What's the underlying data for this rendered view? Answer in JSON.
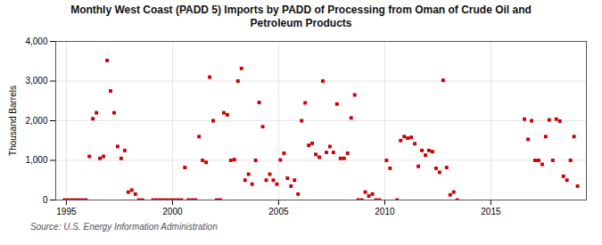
{
  "chart_data": {
    "type": "scatter",
    "title": "Monthly West Coast (PADD 5) Imports by PADD of Processing from Oman of Crude Oil and\nPetroleum Products",
    "ylabel": "Thousand Barrels",
    "source": "Source: U.S. Energy Information Administration",
    "color": "#cc0000",
    "marker": "square",
    "grid": true,
    "xlim": [
      1994.5,
      2019.5
    ],
    "xticks": [
      1995,
      2000,
      2005,
      2010,
      2015
    ],
    "ylim": [
      0,
      4000
    ],
    "yticks": [
      0,
      {
        "value": 1000,
        "label": "1,000"
      },
      {
        "value": 2000,
        "label": "2,000"
      },
      {
        "value": 3000,
        "label": "3,000"
      },
      {
        "value": 4000,
        "label": "4,000"
      }
    ],
    "x": [
      1994.917,
      1995.083,
      1995.25,
      1995.417,
      1995.583,
      1995.75,
      1995.917,
      1996.083,
      1996.25,
      1996.417,
      1996.583,
      1996.75,
      1996.917,
      1997.083,
      1997.25,
      1997.417,
      1997.583,
      1997.75,
      1997.917,
      1998.083,
      1998.25,
      1998.417,
      1998.583,
      1999.083,
      1999.25,
      1999.417,
      1999.583,
      1999.75,
      1999.917,
      2000.083,
      2000.25,
      2000.417,
      2000.583,
      2000.75,
      2000.917,
      2001.083,
      2001.25,
      2001.417,
      2001.583,
      2001.75,
      2001.917,
      2002.083,
      2002.25,
      2002.417,
      2002.583,
      2002.75,
      2002.917,
      2003.083,
      2003.25,
      2003.417,
      2003.583,
      2003.75,
      2003.917,
      2004.083,
      2004.25,
      2004.417,
      2004.583,
      2004.75,
      2004.917,
      2005.083,
      2005.25,
      2005.417,
      2005.583,
      2005.75,
      2005.917,
      2006.083,
      2006.25,
      2006.417,
      2006.583,
      2006.75,
      2006.917,
      2007.083,
      2007.25,
      2007.417,
      2007.583,
      2007.75,
      2007.917,
      2008.083,
      2008.25,
      2008.417,
      2008.583,
      2008.75,
      2008.917,
      2009.083,
      2009.25,
      2009.417,
      2009.583,
      2009.75,
      2010.083,
      2010.25,
      2010.583,
      2010.75,
      2010.917,
      2011.083,
      2011.25,
      2011.417,
      2011.583,
      2011.75,
      2011.917,
      2012.083,
      2012.25,
      2012.417,
      2012.583,
      2012.75,
      2012.917,
      2013.083,
      2013.25,
      2013.417,
      2016.583,
      2016.75,
      2016.917,
      2017.083,
      2017.25,
      2017.417,
      2017.583,
      2017.75,
      2017.917,
      2018.083,
      2018.25,
      2018.417,
      2018.583,
      2018.75,
      2018.917,
      2019.083
    ],
    "values": [
      0,
      0,
      0,
      0,
      0,
      0,
      0,
      1100,
      2050,
      2200,
      1050,
      1100,
      3520,
      2750,
      2200,
      1350,
      1050,
      1250,
      200,
      250,
      150,
      0,
      0,
      0,
      0,
      0,
      0,
      0,
      0,
      0,
      0,
      0,
      820,
      0,
      0,
      0,
      1600,
      1000,
      950,
      3100,
      2000,
      0,
      0,
      2200,
      2150,
      1000,
      1020,
      3000,
      3320,
      500,
      650,
      400,
      1000,
      2460,
      1850,
      500,
      650,
      500,
      400,
      1010,
      1180,
      550,
      350,
      500,
      150,
      2000,
      2450,
      1380,
      1430,
      1150,
      1080,
      3000,
      1200,
      1350,
      1200,
      2420,
      1050,
      1050,
      1180,
      2070,
      2650,
      0,
      0,
      200,
      100,
      150,
      0,
      0,
      1000,
      800,
      0,
      1500,
      1600,
      1560,
      1580,
      1420,
      850,
      1250,
      1130,
      1250,
      1220,
      800,
      700,
      3020,
      820,
      130,
      200,
      0,
      2040,
      1530,
      2000,
      1000,
      1000,
      900,
      1600,
      2020,
      1000,
      2040,
      1990,
      600,
      500,
      1000,
      1600,
      350
    ]
  }
}
